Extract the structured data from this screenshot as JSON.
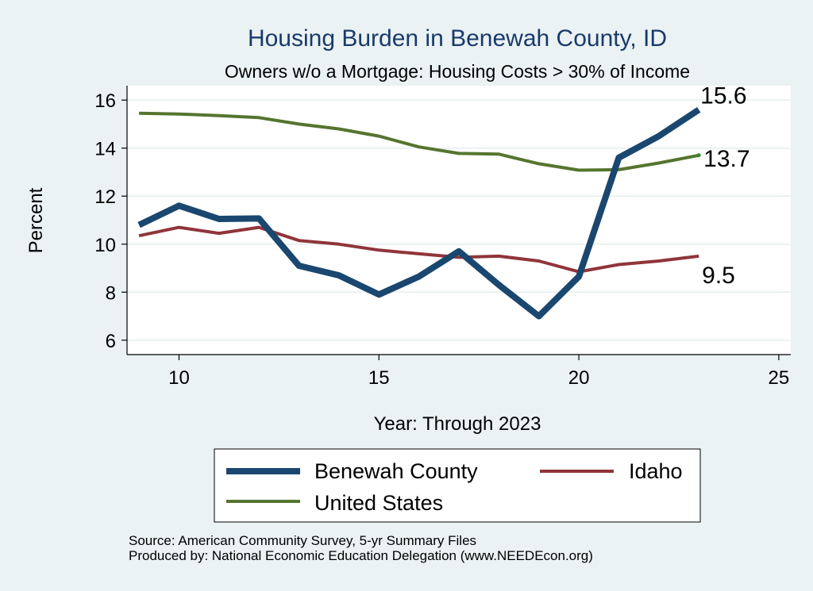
{
  "chart_data": {
    "type": "line",
    "title": "Housing Burden in Benewah County, ID",
    "subtitle": "Owners w/o a Mortgage: Housing Costs > 30% of Income",
    "xlabel": "Year: Through 2023",
    "ylabel": "Percent",
    "xlim": [
      8.7,
      25.3
    ],
    "ylim": [
      5.4,
      16.6
    ],
    "xticks": [
      10,
      15,
      20,
      25
    ],
    "yticks": [
      6,
      8,
      10,
      12,
      14,
      16
    ],
    "grid": true,
    "legend_position": "bottom",
    "x": [
      9,
      10,
      11,
      12,
      13,
      14,
      15,
      16,
      17,
      18,
      19,
      20,
      21,
      22,
      23
    ],
    "series": [
      {
        "name": "Benewah County",
        "color": "#1a476f",
        "values": [
          10.8,
          11.6,
          11.05,
          11.07,
          9.1,
          8.7,
          7.9,
          8.65,
          9.7,
          8.3,
          7.0,
          8.65,
          13.6,
          14.5,
          15.6
        ],
        "end_label": "15.6"
      },
      {
        "name": "Idaho",
        "color": "#90353b",
        "values": [
          10.35,
          10.7,
          10.45,
          10.7,
          10.15,
          10.0,
          9.75,
          9.6,
          9.45,
          9.5,
          9.3,
          8.85,
          9.15,
          9.3,
          9.5
        ],
        "end_label": "9.5"
      },
      {
        "name": "United States",
        "color": "#55752f",
        "values": [
          15.45,
          15.42,
          15.35,
          15.27,
          15.0,
          14.8,
          14.5,
          14.05,
          13.78,
          13.75,
          13.35,
          13.08,
          13.1,
          13.38,
          13.7
        ],
        "end_label": "13.7"
      }
    ]
  },
  "footer": {
    "source": "Source: American Community Survey, 5-yr Summary Files",
    "produced": "Produced by: National Economic Education Delegation (www.NEEDEcon.org)"
  }
}
